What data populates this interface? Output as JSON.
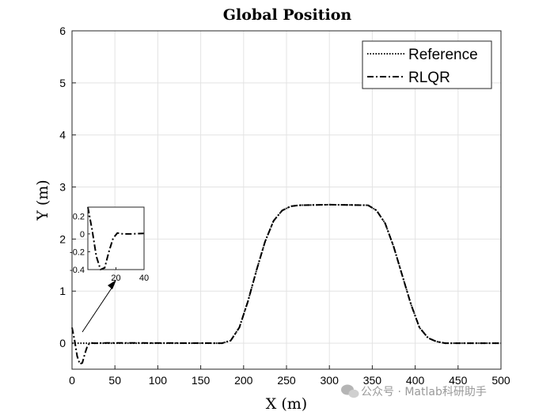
{
  "chart_data": {
    "type": "line",
    "title": "Global Position",
    "xlabel": "X (m)",
    "ylabel": "Y (m)",
    "xlim": [
      0,
      500
    ],
    "ylim": [
      -0.5,
      6
    ],
    "xticks": [
      0,
      50,
      100,
      150,
      200,
      250,
      300,
      350,
      400,
      450,
      500
    ],
    "yticks": [
      0,
      1,
      2,
      3,
      4,
      5,
      6
    ],
    "grid": true,
    "legend_position": "top-right",
    "series": [
      {
        "name": "Reference",
        "style": "dotted",
        "color": "#000000",
        "x": [
          0,
          175,
          185,
          195,
          205,
          215,
          225,
          235,
          245,
          255,
          265,
          300,
          345,
          355,
          365,
          375,
          385,
          395,
          405,
          415,
          425,
          435,
          500
        ],
        "y": [
          0,
          0,
          0.05,
          0.3,
          0.8,
          1.4,
          1.95,
          2.35,
          2.55,
          2.63,
          2.65,
          2.66,
          2.65,
          2.55,
          2.3,
          1.85,
          1.3,
          0.75,
          0.3,
          0.1,
          0.03,
          0,
          0
        ]
      },
      {
        "name": "RLQR",
        "style": "dashdot",
        "color": "#000000",
        "x": [
          0,
          3,
          6,
          9,
          12,
          15,
          18,
          21,
          25,
          30,
          40,
          50,
          175,
          185,
          195,
          205,
          215,
          225,
          235,
          245,
          255,
          265,
          300,
          345,
          355,
          365,
          375,
          385,
          395,
          405,
          415,
          425,
          435,
          500
        ],
        "y": [
          0.3,
          0.05,
          -0.25,
          -0.4,
          -0.38,
          -0.2,
          -0.05,
          0.01,
          0.0,
          0.0,
          0.005,
          0.005,
          0,
          0.05,
          0.3,
          0.8,
          1.4,
          1.95,
          2.35,
          2.55,
          2.63,
          2.65,
          2.66,
          2.65,
          2.55,
          2.3,
          1.85,
          1.3,
          0.75,
          0.3,
          0.1,
          0.03,
          0,
          0
        ]
      }
    ],
    "inset": {
      "xlim": [
        0,
        40
      ],
      "ylim": [
        -0.4,
        0.3
      ],
      "xticks": [
        20,
        40
      ],
      "yticks": [
        0.2,
        0,
        -0.2,
        -0.4
      ],
      "ytick_labels": [
        "0.2",
        "0",
        "-0.2",
        "-0.4"
      ]
    }
  },
  "watermark": "公众号 · Matlab科研助手"
}
